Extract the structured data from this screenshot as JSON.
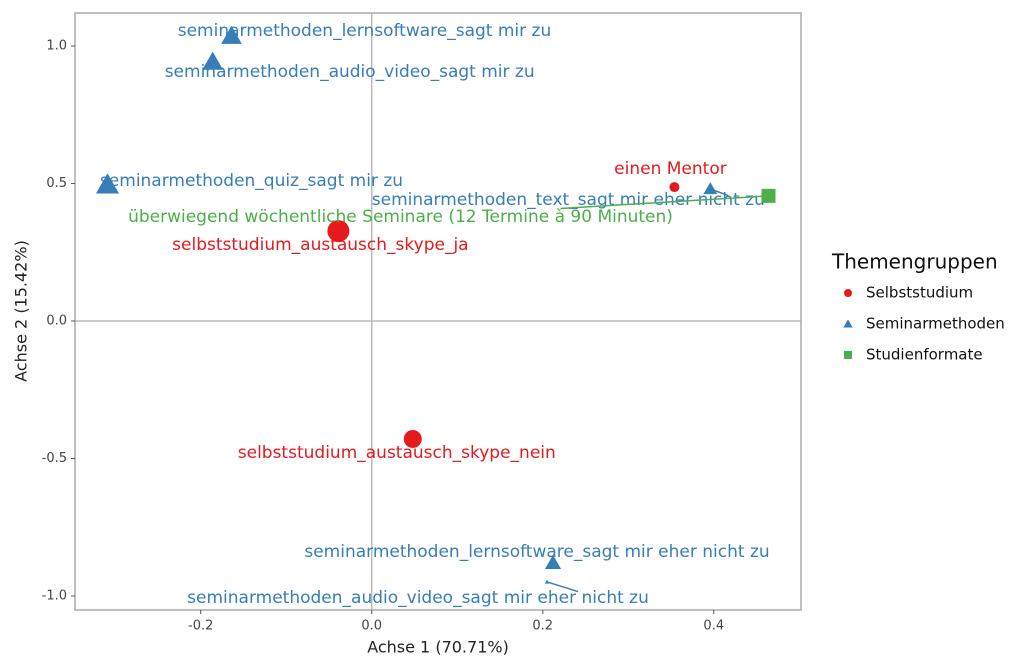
{
  "chart_data": {
    "type": "scatter",
    "xlabel": "Achse 1 (70.71%)",
    "ylabel": "Achse 2 (15.42%)",
    "legend_title": "Themengruppen",
    "legend": "right",
    "xlim": [
      -0.347,
      0.502
    ],
    "ylim": [
      -1.051,
      1.12
    ],
    "xticks": [
      -0.2,
      {
        "value": 0,
        "label": "0.0"
      },
      0.2,
      0.4
    ],
    "yticks": [
      {
        "value": -1,
        "label": "-1.0"
      },
      -0.5,
      {
        "value": 0,
        "label": "0.0"
      },
      0.5,
      {
        "value": 1,
        "label": "1.0"
      }
    ],
    "series": [
      {
        "name": "Selbststudium",
        "color": "#e41a1c",
        "marker": "circle",
        "x": [
          0.354,
          -0.039,
          0.048
        ],
        "y": [
          0.487,
          0.327,
          -0.429
        ],
        "labels": [
          "einen Mentor",
          "selbststudium_austausch_skype_ja",
          "selbststudium_austausch_skype_nein"
        ]
      },
      {
        "name": "Seminarmethoden",
        "color": "#377eb8",
        "marker": "triangle",
        "x": [
          -0.164,
          -0.186,
          -0.309,
          0.396,
          0.212,
          0.205
        ],
        "y": [
          1.036,
          0.942,
          0.495,
          0.48,
          -0.88,
          -0.949
        ],
        "labels": [
          "seminarmethoden_lernsoftware_sagt mir zu",
          "seminarmethoden_audio_video_sagt mir zu",
          "seminarmethoden_quiz_sagt mir zu",
          "seminarmethoden_text_sagt mir eher nicht zu",
          "seminarmethoden_lernsoftware_sagt mir eher nicht zu",
          "seminarmethoden_audio_video_sagt mir eher nicht zu"
        ]
      },
      {
        "name": "Studienformate",
        "color": "#4daf4a",
        "marker": "square",
        "x": [
          0.464
        ],
        "y": [
          0.455
        ],
        "labels": [
          "überwiegend wöchentliche Seminare (12 Termine à 90 Minuten)"
        ]
      }
    ]
  }
}
